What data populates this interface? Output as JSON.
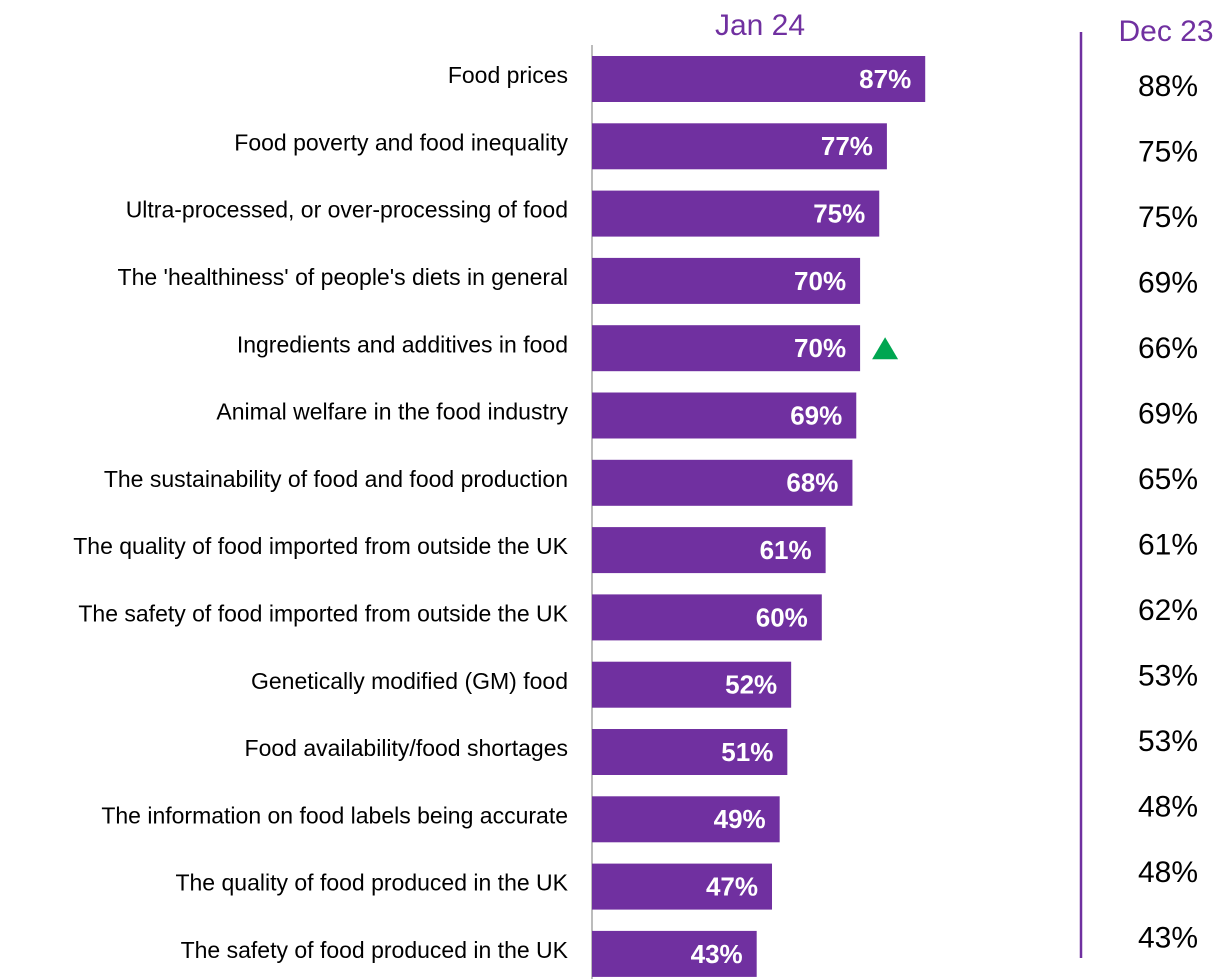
{
  "chart_data": {
    "type": "bar",
    "orientation": "horizontal",
    "categories": [
      "Food prices",
      "Food poverty and food inequality",
      "Ultra-processed, or over-processing of food",
      "The 'healthiness' of people's diets in general",
      "Ingredients and additives in food",
      "Animal welfare in the food industry",
      "The sustainability of food and food production",
      "The quality of food imported from outside the UK",
      "The safety of food imported from outside the UK",
      "Genetically modified (GM) food",
      "Food availability/food shortages",
      "The information on food labels being accurate",
      "The quality of food produced in the UK",
      "The safety of food produced in the UK"
    ],
    "series": [
      {
        "name": "Jan 24",
        "color": "#7030a0",
        "values": [
          87,
          77,
          75,
          70,
          70,
          69,
          68,
          61,
          60,
          52,
          51,
          49,
          47,
          43
        ],
        "value_labels": [
          "87%",
          "77%",
          "75%",
          "70%",
          "70%",
          "69%",
          "68%",
          "61%",
          "60%",
          "52%",
          "51%",
          "49%",
          "47%",
          "43%"
        ],
        "increase_flags": [
          false,
          false,
          false,
          false,
          true,
          false,
          false,
          false,
          false,
          false,
          false,
          false,
          false,
          false
        ],
        "increase_color": "#00a651"
      },
      {
        "name": "Dec 23",
        "color": "#7030a0",
        "values": [
          88,
          75,
          75,
          69,
          66,
          69,
          65,
          61,
          62,
          53,
          53,
          48,
          48,
          43
        ],
        "value_labels": [
          "88%",
          "75%",
          "75%",
          "69%",
          "66%",
          "69%",
          "65%",
          "61%",
          "62%",
          "53%",
          "53%",
          "48%",
          "48%",
          "43%"
        ]
      }
    ],
    "xlim": [
      0,
      100
    ]
  }
}
